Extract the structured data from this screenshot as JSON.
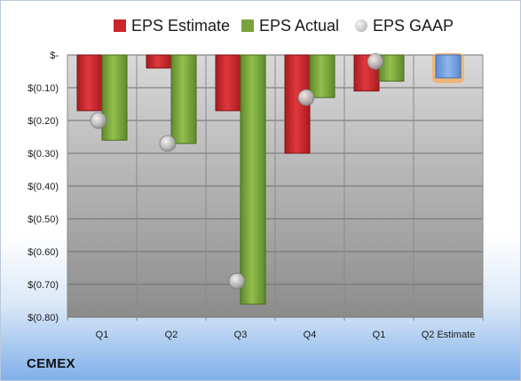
{
  "company": "CEMEX",
  "legend": {
    "estimate": "EPS Estimate",
    "actual": "EPS Actual",
    "gaap": "EPS GAAP"
  },
  "colors": {
    "estimate": "#c8262b",
    "actual": "#7aa33c",
    "gaap": "#b4b4b4",
    "next_estimate": "#6d9fe0",
    "next_estimate_glow": "#f4b06a"
  },
  "chart_data": {
    "type": "bar",
    "categories": [
      "Q1",
      "Q2",
      "Q3",
      "Q4",
      "Q1",
      "Q2 Estimate"
    ],
    "series": [
      {
        "name": "EPS Estimate",
        "values": [
          -0.17,
          -0.04,
          -0.17,
          -0.3,
          -0.11,
          null
        ]
      },
      {
        "name": "EPS Actual",
        "values": [
          -0.26,
          -0.27,
          -0.76,
          -0.13,
          -0.08,
          null
        ]
      },
      {
        "name": "EPS GAAP",
        "values": [
          -0.2,
          -0.27,
          -0.69,
          -0.13,
          -0.02,
          null
        ]
      }
    ],
    "next_estimate": {
      "category": "Q2 Estimate",
      "value": -0.07
    },
    "ylim": [
      -0.8,
      0
    ],
    "yticks": [
      0,
      -0.1,
      -0.2,
      -0.3,
      -0.4,
      -0.5,
      -0.6,
      -0.7,
      -0.8
    ],
    "ytick_labels": [
      "$-",
      "$(0.10)",
      "$(0.20)",
      "$(0.30)",
      "$(0.40)",
      "$(0.50)",
      "$(0.60)",
      "$(0.70)",
      "$(0.80)"
    ],
    "legend_position": "top",
    "grid": true
  }
}
